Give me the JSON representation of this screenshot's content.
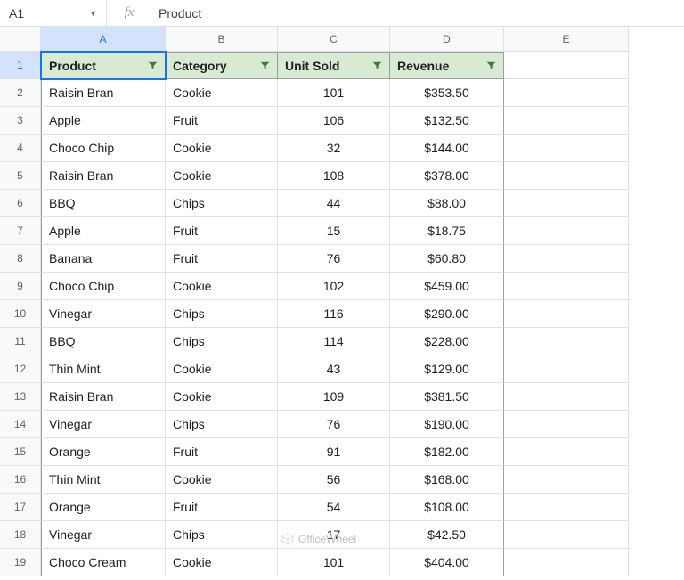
{
  "formula_bar": {
    "cell_ref": "A1",
    "fx_label": "fx",
    "value": "Product"
  },
  "columns": [
    "A",
    "B",
    "C",
    "D",
    "E"
  ],
  "active_cell": {
    "row": 1,
    "col": 0
  },
  "headers": {
    "product": "Product",
    "category": "Category",
    "unit_sold": "Unit Sold",
    "revenue": "Revenue"
  },
  "rows": [
    {
      "n": 2,
      "product": "Raisin Bran",
      "category": "Cookie",
      "unit_sold": "101",
      "revenue": "$353.50"
    },
    {
      "n": 3,
      "product": "Apple",
      "category": "Fruit",
      "unit_sold": "106",
      "revenue": "$132.50"
    },
    {
      "n": 4,
      "product": "Choco Chip",
      "category": "Cookie",
      "unit_sold": "32",
      "revenue": "$144.00"
    },
    {
      "n": 5,
      "product": "Raisin Bran",
      "category": "Cookie",
      "unit_sold": "108",
      "revenue": "$378.00"
    },
    {
      "n": 6,
      "product": "BBQ",
      "category": "Chips",
      "unit_sold": "44",
      "revenue": "$88.00"
    },
    {
      "n": 7,
      "product": "Apple",
      "category": "Fruit",
      "unit_sold": "15",
      "revenue": "$18.75"
    },
    {
      "n": 8,
      "product": "Banana",
      "category": "Fruit",
      "unit_sold": "76",
      "revenue": "$60.80"
    },
    {
      "n": 9,
      "product": "Choco Chip",
      "category": "Cookie",
      "unit_sold": "102",
      "revenue": "$459.00"
    },
    {
      "n": 10,
      "product": "Vinegar",
      "category": "Chips",
      "unit_sold": "116",
      "revenue": "$290.00"
    },
    {
      "n": 11,
      "product": "BBQ",
      "category": "Chips",
      "unit_sold": "114",
      "revenue": "$228.00"
    },
    {
      "n": 12,
      "product": "Thin Mint",
      "category": "Cookie",
      "unit_sold": "43",
      "revenue": "$129.00"
    },
    {
      "n": 13,
      "product": "Raisin Bran",
      "category": "Cookie",
      "unit_sold": "109",
      "revenue": "$381.50"
    },
    {
      "n": 14,
      "product": "Vinegar",
      "category": "Chips",
      "unit_sold": "76",
      "revenue": "$190.00"
    },
    {
      "n": 15,
      "product": "Orange",
      "category": "Fruit",
      "unit_sold": "91",
      "revenue": "$182.00"
    },
    {
      "n": 16,
      "product": "Thin Mint",
      "category": "Cookie",
      "unit_sold": "56",
      "revenue": "$168.00"
    },
    {
      "n": 17,
      "product": "Orange",
      "category": "Fruit",
      "unit_sold": "54",
      "revenue": "$108.00"
    },
    {
      "n": 18,
      "product": "Vinegar",
      "category": "Chips",
      "unit_sold": "17",
      "revenue": "$42.50"
    },
    {
      "n": 19,
      "product": "Choco Cream",
      "category": "Cookie",
      "unit_sold": "101",
      "revenue": "$404.00"
    }
  ],
  "watermark": "OfficeWheel",
  "colors": {
    "header_bg": "#d9ead3",
    "grid_line": "#e0e0e0",
    "selection": "#1a73e8",
    "col_sel_bg": "#d3e3fd"
  }
}
